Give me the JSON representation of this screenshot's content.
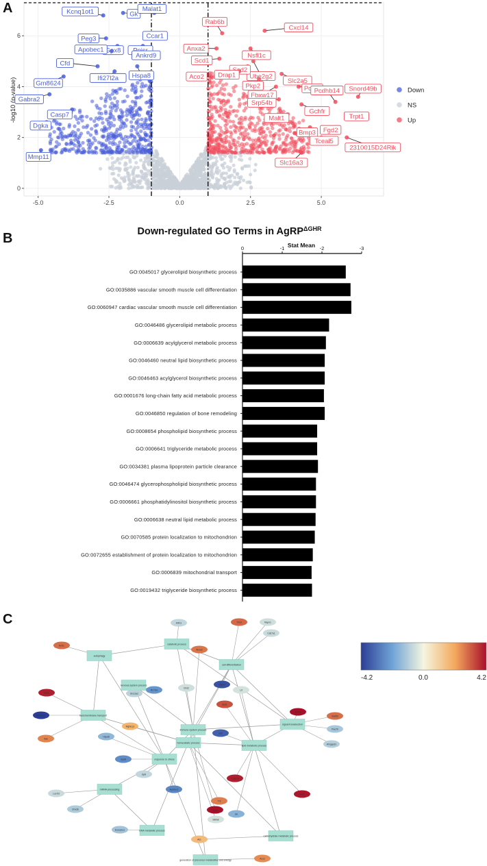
{
  "panels": {
    "a": "A",
    "b": "B",
    "c": "C"
  },
  "colors": {
    "down": "#4a5fd9",
    "ns": "#c9d0d8",
    "up": "#f0505f",
    "bar": "#000000"
  },
  "volcano": {
    "type": "scatter",
    "ylabel": "-log10 (p-value)",
    "xlim": [
      -5.5,
      7.2
    ],
    "ylim": [
      -0.3,
      7.3
    ],
    "xticks": [
      -5.0,
      -2.5,
      0.0,
      2.5,
      5.0
    ],
    "xtick_labels": [
      "-5.0",
      "-2.5",
      "0.0",
      "2.5",
      "5.0"
    ],
    "yticks": [
      0,
      2,
      4,
      6
    ],
    "ytick_labels": [
      "0",
      "2",
      "4",
      "6"
    ],
    "thresholds_x": [
      -1.0,
      1.0
    ],
    "legend": {
      "title": "",
      "items": [
        {
          "name": "Down",
          "key": "down"
        },
        {
          "name": "NS",
          "key": "ns"
        },
        {
          "name": "Up",
          "key": "up"
        }
      ],
      "position": "right"
    },
    "down_labels": [
      {
        "name": "Kcnq1ot1",
        "x": -2.7,
        "y": 6.8
      },
      {
        "name": "Gk",
        "x": -2.0,
        "y": 6.9
      },
      {
        "name": "Malat1",
        "x": -0.9,
        "y": 6.9
      },
      {
        "name": "Peg3",
        "x": -2.6,
        "y": 5.9
      },
      {
        "name": "Ccar1",
        "x": -0.9,
        "y": 6.0
      },
      {
        "name": "Gpx8",
        "x": -2.2,
        "y": 5.6
      },
      {
        "name": "Pnisr",
        "x": -1.3,
        "y": 5.6
      },
      {
        "name": "Apobec1",
        "x": -2.4,
        "y": 5.4
      },
      {
        "name": "Ankrd9",
        "x": -1.4,
        "y": 5.3
      },
      {
        "name": "Cfd",
        "x": -2.9,
        "y": 4.8
      },
      {
        "name": "Hspa8",
        "x": -1.5,
        "y": 4.8
      },
      {
        "name": "Ifi27l2a",
        "x": -2.3,
        "y": 4.6
      },
      {
        "name": "Gm8624",
        "x": -4.1,
        "y": 4.4
      },
      {
        "name": "Gabra2",
        "x": -4.6,
        "y": 3.7
      },
      {
        "name": "Casp7",
        "x": -3.8,
        "y": 3.1
      },
      {
        "name": "Dgka",
        "x": -4.7,
        "y": 2.6
      },
      {
        "name": "Mmp11",
        "x": -4.9,
        "y": 1.5
      }
    ],
    "up_labels": [
      {
        "name": "Rab6b",
        "x": 1.5,
        "y": 6.1
      },
      {
        "name": "Cxcl14",
        "x": 3.0,
        "y": 6.2
      },
      {
        "name": "Anxa2",
        "x": 1.3,
        "y": 5.5
      },
      {
        "name": "Nsfl1c",
        "x": 2.5,
        "y": 5.5
      },
      {
        "name": "Scd1",
        "x": 1.4,
        "y": 5.1
      },
      {
        "name": "Ube2g2",
        "x": 2.6,
        "y": 5.0
      },
      {
        "name": "Scd2",
        "x": 2.4,
        "y": 4.8
      },
      {
        "name": "Drap1",
        "x": 2.1,
        "y": 4.6
      },
      {
        "name": "Slc2a5",
        "x": 3.6,
        "y": 4.5
      },
      {
        "name": "Aco2",
        "x": 1.1,
        "y": 4.4
      },
      {
        "name": "Pkp2",
        "x": 2.8,
        "y": 4.3
      },
      {
        "name": "Pomk",
        "x": 4.2,
        "y": 4.0
      },
      {
        "name": "Fbxw17",
        "x": 3.4,
        "y": 4.0
      },
      {
        "name": "Pcdhb14",
        "x": 5.5,
        "y": 3.4
      },
      {
        "name": "Snord49b",
        "x": 6.3,
        "y": 3.6
      },
      {
        "name": "Srp54b",
        "x": 3.5,
        "y": 3.5
      },
      {
        "name": "Gchfr",
        "x": 4.3,
        "y": 3.3
      },
      {
        "name": "Trpt1",
        "x": 6.1,
        "y": 2.9
      },
      {
        "name": "Malt1",
        "x": 3.8,
        "y": 2.9
      },
      {
        "name": "Fgd2",
        "x": 5.6,
        "y": 2.3
      },
      {
        "name": "Bmp3",
        "x": 4.6,
        "y": 2.4
      },
      {
        "name": "Tceal5",
        "x": 5.0,
        "y": 2.0
      },
      {
        "name": "2310015D24Rik",
        "x": 5.9,
        "y": 2.0
      },
      {
        "name": "Slc16a3",
        "x": 4.3,
        "y": 1.4
      }
    ]
  },
  "go_chart": {
    "type": "bar",
    "title": "Down-regulated GO Terms in AgRP",
    "title_sup": "ΔGHR",
    "xlabel": "Stat Mean",
    "xlim": [
      0,
      -3
    ],
    "xticks": [
      0,
      -1,
      -2,
      -3
    ],
    "xtick_labels": [
      "0",
      "-1",
      "-2",
      "-3"
    ],
    "categories": [
      "GO:0045017 glycerolipid biosynthetic process",
      "GO:0035886 vascular smooth muscle cell differentiation",
      "GO:0060947 cardiac vascular smooth muscle cell differentiation",
      "GO:0046486 glycerolipid metabolic process",
      "GO:0006639 acylglycerol metabolic process",
      "GO:0046460 neutral lipid biosynthetic process",
      "GO:0046463 acylglycerol biosynthetic process",
      "GO:0001676 long-chain fatty acid metabolic process",
      "GO:0046850 regulation of bone remodeling",
      "GO:0008654 phospholipid biosynthetic process",
      "GO:0006641 triglyceride metabolic process",
      "GO:0034381 plasma lipoprotein particle clearance",
      "GO:0046474 glycerophospholipid biosynthetic process",
      "GO:0006661 phosphatidylinositol biosynthetic process",
      "GO:0006638 neutral lipid metabolic process",
      "GO:0070585 protein localization to mitochondrion",
      "GO:0072655 establishment of protein localization to mitochondrion",
      "GO:0006839 mitochondrial transport",
      "GO:0019432 triglyceride biosynthetic process"
    ],
    "values": [
      -2.6,
      -2.72,
      -2.74,
      -2.18,
      -2.1,
      -2.07,
      -2.07,
      -2.05,
      -2.07,
      -1.88,
      -1.88,
      -1.9,
      -1.85,
      -1.85,
      -1.84,
      -1.82,
      -1.77,
      -1.74,
      -1.75
    ]
  },
  "network": {
    "legend": {
      "min_label": "-4.2",
      "mid_label": "0.0",
      "max_label": "4.2",
      "min": -4.2,
      "max": 4.2
    },
    "processes": [
      {
        "label": "catabolic process"
      },
      {
        "label": "autophagy"
      },
      {
        "label": "cell differentiation"
      },
      {
        "label": "nervous system process"
      },
      {
        "label": "transmembrane transport"
      },
      {
        "label": "signal transduction"
      },
      {
        "label": "immune system process"
      },
      {
        "label": "homeostatic process"
      },
      {
        "label": "response to stress"
      },
      {
        "label": "lipid metabolic process"
      },
      {
        "label": "mRNA processing"
      },
      {
        "label": "DNA metabolic process"
      },
      {
        "label": "carbohydrate metabolic process"
      },
      {
        "label": "generation of precursor metabolites and energy"
      }
    ],
    "genes": [
      {
        "label": "Aifm1",
        "value": -0.8
      },
      {
        "label": "Nsf1c",
        "value": 2.9
      },
      {
        "label": "Tmsf",
        "value": 3.0
      },
      {
        "label": "Rapn1",
        "value": -0.6
      },
      {
        "label": "Cdc7a1",
        "value": -0.7
      },
      {
        "label": "Anxa2",
        "value": 2.8
      },
      {
        "label": "Capn7",
        "value": -3.8
      },
      {
        "label": "Ifi27l2a",
        "value": -2.4
      },
      {
        "label": "Scd1",
        "value": 3.3
      },
      {
        "label": "Slc12a2",
        "value": -0.9
      },
      {
        "label": "Chd2",
        "value": -0.6
      },
      {
        "label": "Lif",
        "value": -0.5
      },
      {
        "label": "Cebp",
        "value": 4.0
      },
      {
        "label": "Slc6a1",
        "value": 4.2
      },
      {
        "label": "Slc25a27",
        "value": -4.2
      },
      {
        "label": "Aak",
        "value": 2.6
      },
      {
        "label": "Mgfa1p1",
        "value": 1.8
      },
      {
        "label": "Hspa8",
        "value": -1.6
      },
      {
        "label": "Gdx",
        "value": -3.5
      },
      {
        "label": "Gpx8",
        "value": -2.6
      },
      {
        "label": "Gp8",
        "value": -0.8
      },
      {
        "label": "Stat5b",
        "value": 2.9
      },
      {
        "label": "Plac7b",
        "value": -1.2
      },
      {
        "label": "Ahrgap31",
        "value": -1.0
      },
      {
        "label": "Casp7a",
        "value": 4.0
      },
      {
        "label": "Acsl",
        "value": 4.1
      },
      {
        "label": "Luc7l3",
        "value": -0.7
      },
      {
        "label": "Dhx36",
        "value": -1.1
      },
      {
        "label": "Apobec1",
        "value": -2.7
      },
      {
        "label": "Ifng2",
        "value": 4.2
      },
      {
        "label": "Skibat",
        "value": -0.5
      },
      {
        "label": "Tnf",
        "value": 2.7
      },
      {
        "label": "Gk",
        "value": -1.7
      },
      {
        "label": "Eccsp1a1",
        "value": -1.3
      },
      {
        "label": "Ak1",
        "value": 1.6
      },
      {
        "label": "Aco2",
        "value": 2.5
      }
    ]
  }
}
